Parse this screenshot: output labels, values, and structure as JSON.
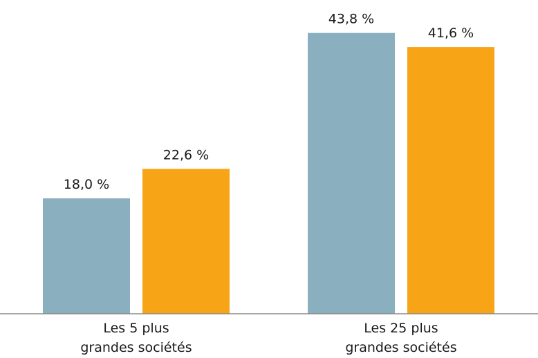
{
  "chart_data": {
    "type": "bar",
    "categories": [
      [
        "Les 5 plus",
        "grandes sociétés"
      ],
      [
        "Les 25 plus",
        "grandes sociétés"
      ]
    ],
    "series": [
      {
        "color": "#8aafbf",
        "values": [
          18.0,
          43.8
        ],
        "labels": [
          "18,0 %",
          "43,8 %"
        ]
      },
      {
        "color": "#f7a416",
        "values": [
          22.6,
          41.6
        ],
        "labels": [
          "22,6 %",
          "41,6 %"
        ]
      }
    ],
    "ylim": [
      0,
      47
    ],
    "grid": false,
    "legend": "none"
  }
}
